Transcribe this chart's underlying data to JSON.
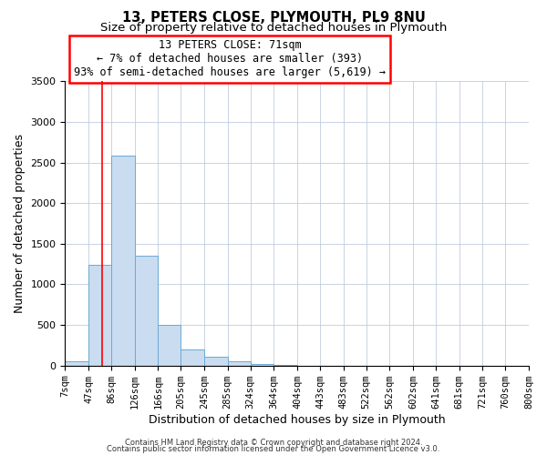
{
  "title": "13, PETERS CLOSE, PLYMOUTH, PL9 8NU",
  "subtitle": "Size of property relative to detached houses in Plymouth",
  "xlabel": "Distribution of detached houses by size in Plymouth",
  "ylabel": "Number of detached properties",
  "bin_labels": [
    "7sqm",
    "47sqm",
    "86sqm",
    "126sqm",
    "166sqm",
    "205sqm",
    "245sqm",
    "285sqm",
    "324sqm",
    "364sqm",
    "404sqm",
    "443sqm",
    "483sqm",
    "522sqm",
    "562sqm",
    "602sqm",
    "641sqm",
    "681sqm",
    "721sqm",
    "760sqm",
    "800sqm"
  ],
  "bin_edges": [
    7,
    47,
    86,
    126,
    166,
    205,
    245,
    285,
    324,
    364,
    404,
    443,
    483,
    522,
    562,
    602,
    641,
    681,
    721,
    760,
    800
  ],
  "bar_heights": [
    50,
    1240,
    2580,
    1350,
    500,
    200,
    110,
    50,
    20,
    5,
    2,
    0,
    0,
    0,
    0,
    0,
    0,
    0,
    0,
    0
  ],
  "bar_color": "#c9dcf0",
  "bar_edge_color": "#6aaad4",
  "red_line_x": 71,
  "ylim": [
    0,
    3500
  ],
  "ann_line1": "13 PETERS CLOSE: 71sqm",
  "ann_line2": "← 7% of detached houses are smaller (393)",
  "ann_line3": "93% of semi-detached houses are larger (5,619) →",
  "footer_line1": "Contains HM Land Registry data © Crown copyright and database right 2024.",
  "footer_line2": "Contains public sector information licensed under the Open Government Licence v3.0.",
  "background_color": "#ffffff",
  "grid_color": "#c0ccdd",
  "title_fontsize": 10.5,
  "subtitle_fontsize": 9.5,
  "axis_label_fontsize": 9,
  "tick_fontsize": 7.5,
  "footer_fontsize": 6.0
}
